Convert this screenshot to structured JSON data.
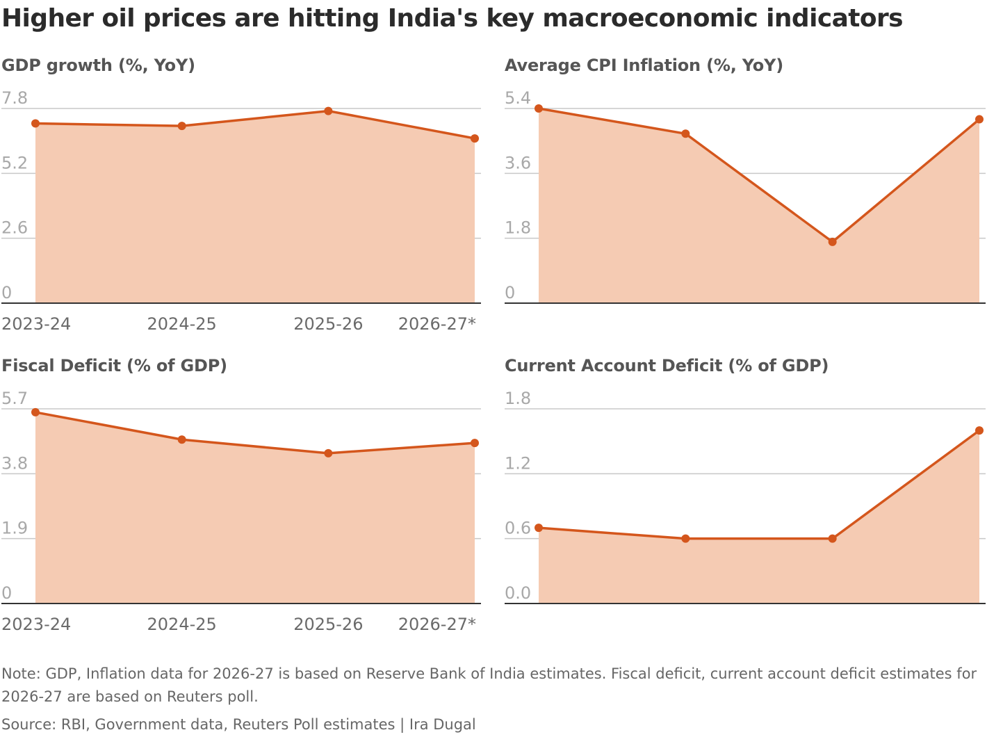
{
  "title": "Higher oil prices are hitting India's key macroeconomic indicators",
  "colors": {
    "line": "#d4561c",
    "area": "#f5cbb3",
    "grid": "#c8c8c8",
    "axis": "#333333"
  },
  "note": "Note: GDP, Inflation data for 2026-27 is based on Reserve Bank of India estimates. Fiscal deficit, current account deficit estimates for 2026-27 are based on Reuters poll.",
  "source": "Source: RBI, Government data, Reuters Poll estimates | Ira Dugal",
  "chart_data": [
    {
      "type": "area",
      "title": "GDP growth (%, YoY)",
      "categories": [
        "2023-24",
        "2024-25",
        "2025-26",
        "2026-27*"
      ],
      "values": [
        7.2,
        7.1,
        7.7,
        6.6
      ],
      "yticks": [
        "0",
        "2.6",
        "5.2",
        "7.8"
      ],
      "ylim": [
        0,
        7.8
      ],
      "grid": true
    },
    {
      "type": "area",
      "title": "Average CPI Inflation (%, YoY)",
      "categories": [
        "2023-24",
        "2024-25",
        "2025-26",
        "2026-27*"
      ],
      "values": [
        5.4,
        4.7,
        1.7,
        5.1
      ],
      "yticks": [
        "0",
        "1.8",
        "3.6",
        "5.4"
      ],
      "ylim": [
        0,
        5.4
      ],
      "grid": true
    },
    {
      "type": "area",
      "title": "Fiscal Deficit (% of GDP)",
      "categories": [
        "2023-24",
        "2024-25",
        "2025-26",
        "2026-27*"
      ],
      "values": [
        5.6,
        4.8,
        4.4,
        4.7
      ],
      "yticks": [
        "0",
        "1.9",
        "3.8",
        "5.7"
      ],
      "ylim": [
        0,
        5.7
      ],
      "grid": true
    },
    {
      "type": "area",
      "title": "Current Account Deficit (% of GDP)",
      "categories": [
        "2023-24",
        "2024-25",
        "2025-26",
        "2026-27*"
      ],
      "values": [
        0.7,
        0.6,
        0.6,
        1.6
      ],
      "yticks": [
        "0.0",
        "0.6",
        "1.2",
        "1.8"
      ],
      "ylim": [
        0,
        1.8
      ],
      "grid": true
    }
  ]
}
